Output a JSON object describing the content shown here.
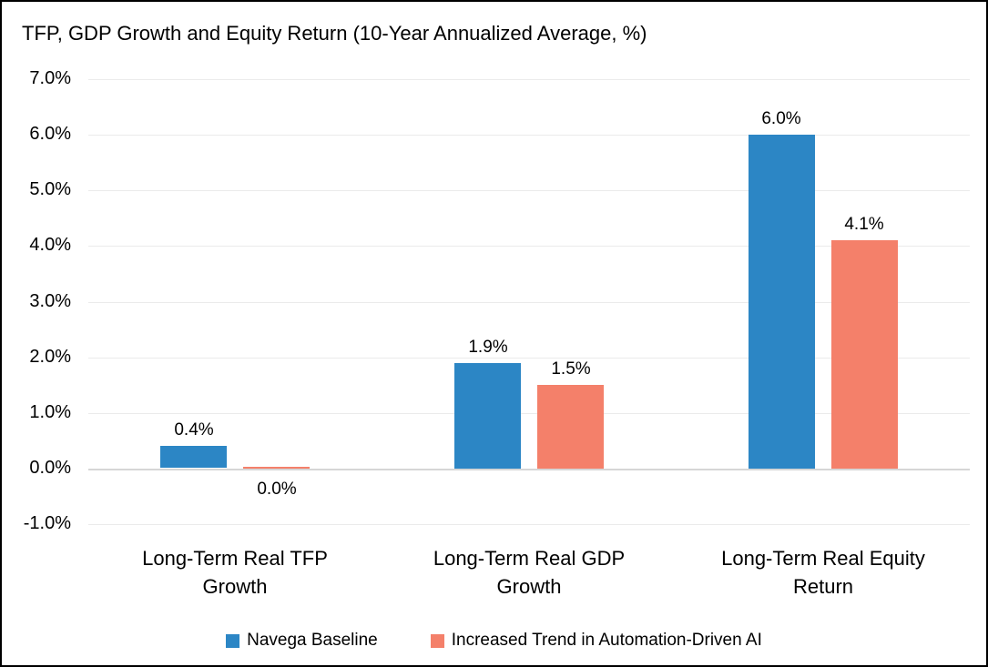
{
  "chart_data": {
    "type": "bar",
    "title": "TFP, GDP Growth and Equity Return (10-Year Annualized Average, %)",
    "categories": [
      "Long-Term Real TFP Growth",
      "Long-Term Real GDP Growth",
      "Long-Term Real Equity Return"
    ],
    "category_lines": [
      [
        "Long-Term Real TFP",
        "Growth"
      ],
      [
        "Long-Term Real GDP",
        "Growth"
      ],
      [
        "Long-Term Real Equity",
        "Return"
      ]
    ],
    "series": [
      {
        "name": "Navega Baseline",
        "color": "#2C86C5",
        "values": [
          0.4,
          1.9,
          6.0
        ],
        "value_labels": [
          "0.4%",
          "1.9%",
          "6.0%"
        ]
      },
      {
        "name": "Increased Trend in Automation-Driven AI",
        "color": "#F4806A",
        "values": [
          0.0,
          1.5,
          4.1
        ],
        "value_labels": [
          "0.0%",
          "1.5%",
          "4.1%"
        ]
      }
    ],
    "y_ticks": [
      {
        "label": "7.0%",
        "value": 7
      },
      {
        "label": "6.0%",
        "value": 6
      },
      {
        "label": "5.0%",
        "value": 5
      },
      {
        "label": "4.0%",
        "value": 4
      },
      {
        "label": "3.0%",
        "value": 3
      },
      {
        "label": "2.0%",
        "value": 2
      },
      {
        "label": "1.0%",
        "value": 1
      },
      {
        "label": "0.0%",
        "value": 0
      },
      {
        "label": "-1.0%",
        "value": -1
      }
    ],
    "ylim": [
      -1,
      7
    ],
    "grid": true,
    "legend_position": "bottom",
    "colors": {
      "gridline": "#EBEBEB",
      "zero_line": "#D6D6D6",
      "text": "#000000",
      "background": "#FFFFFF",
      "frame_border": "#000000"
    }
  }
}
